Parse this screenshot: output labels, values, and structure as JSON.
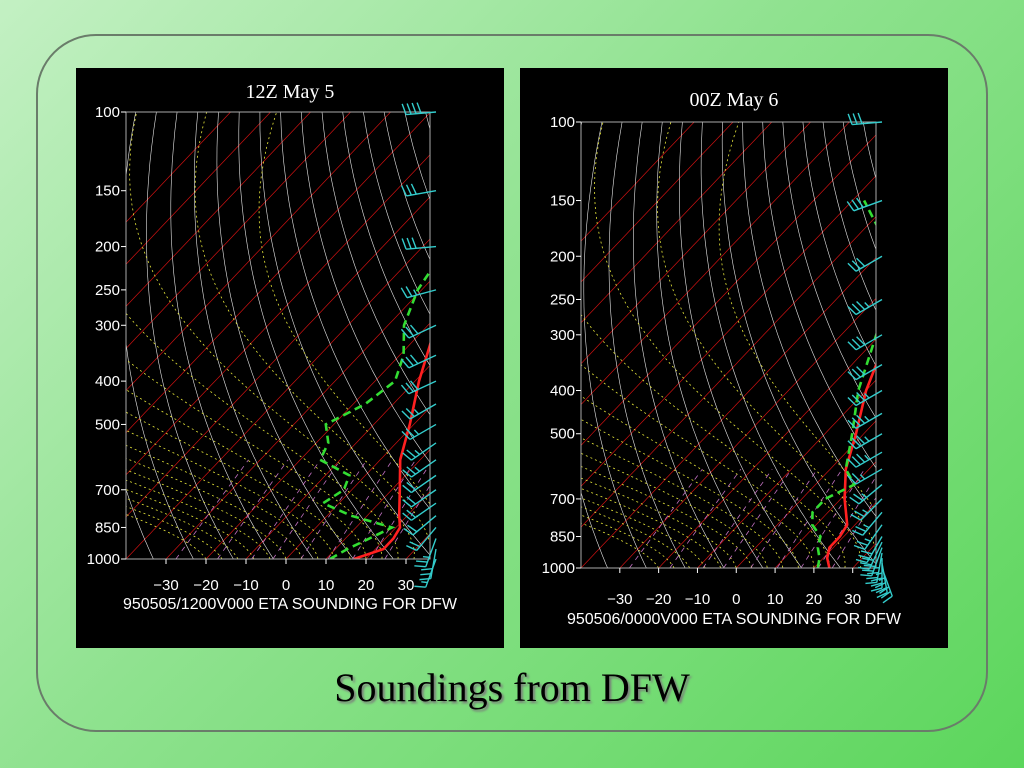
{
  "slide_title": "Soundings from DFW",
  "colors": {
    "background_light": "#c3f0c3",
    "background_dark": "#5cd65c",
    "panel": "#000000",
    "temperature": "#ff2020",
    "dewpoint": "#33dd33",
    "isotherm": "#cc1111",
    "dry_adiabat": "#e8e8e8",
    "moist_adiabat": "#e6e63a",
    "mixing_ratio": "#c070c0",
    "wind_barb": "#33cccc",
    "axis_text": "#ffffff"
  },
  "chart_data": [
    {
      "type": "skew-t",
      "title": "12Z May 5",
      "footer": "950505/1200V000 ETA SOUNDING FOR DFW",
      "pressure_ticks": [
        100,
        150,
        200,
        250,
        300,
        400,
        500,
        700,
        850,
        1000
      ],
      "temperature_ticks": [
        -30,
        -20,
        -10,
        0,
        10,
        20,
        30
      ],
      "xlim": [
        -40,
        36
      ],
      "ylim": [
        1000,
        100
      ],
      "temperature": [
        [
          1000,
          17
        ],
        [
          950,
          22
        ],
        [
          900,
          22
        ],
        [
          850,
          21
        ],
        [
          800,
          18
        ],
        [
          700,
          12
        ],
        [
          600,
          5
        ],
        [
          500,
          -1
        ],
        [
          400,
          -9
        ],
        [
          300,
          -18
        ],
        [
          250,
          -24
        ],
        [
          200,
          -33
        ],
        [
          150,
          -47
        ],
        [
          125,
          -52
        ],
        [
          100,
          -58
        ]
      ],
      "dewpoint": [
        [
          1000,
          11
        ],
        [
          950,
          13
        ],
        [
          900,
          16
        ],
        [
          850,
          19
        ],
        [
          800,
          6
        ],
        [
          750,
          -4
        ],
        [
          700,
          -2
        ],
        [
          650,
          -4
        ],
        [
          600,
          -15
        ],
        [
          550,
          -17
        ],
        [
          500,
          -22
        ],
        [
          450,
          -17
        ],
        [
          400,
          -15
        ],
        [
          350,
          -19
        ],
        [
          300,
          -26
        ],
        [
          250,
          -31
        ],
        [
          200,
          -34
        ],
        [
          190,
          -35
        ]
      ],
      "wind_barbs": [
        {
          "p": 1000,
          "dir": 200,
          "spd": 15
        },
        {
          "p": 950,
          "dir": 190,
          "spd": 30
        },
        {
          "p": 900,
          "dir": 200,
          "spd": 25
        },
        {
          "p": 850,
          "dir": 220,
          "spd": 20
        },
        {
          "p": 800,
          "dir": 230,
          "spd": 20
        },
        {
          "p": 750,
          "dir": 235,
          "spd": 20
        },
        {
          "p": 700,
          "dir": 235,
          "spd": 20
        },
        {
          "p": 650,
          "dir": 235,
          "spd": 20
        },
        {
          "p": 600,
          "dir": 235,
          "spd": 25
        },
        {
          "p": 550,
          "dir": 235,
          "spd": 25
        },
        {
          "p": 500,
          "dir": 240,
          "spd": 25
        },
        {
          "p": 450,
          "dir": 240,
          "spd": 25
        },
        {
          "p": 400,
          "dir": 245,
          "spd": 30
        },
        {
          "p": 350,
          "dir": 245,
          "spd": 30
        },
        {
          "p": 300,
          "dir": 245,
          "spd": 30
        },
        {
          "p": 250,
          "dir": 255,
          "spd": 25
        },
        {
          "p": 200,
          "dir": 265,
          "spd": 30
        },
        {
          "p": 150,
          "dir": 260,
          "spd": 30
        },
        {
          "p": 100,
          "dir": 265,
          "spd": 40
        }
      ]
    },
    {
      "type": "skew-t",
      "title": "00Z May 6",
      "footer": "950506/0000V000 ETA SOUNDING FOR DFW",
      "pressure_ticks": [
        100,
        150,
        200,
        250,
        300,
        400,
        500,
        700,
        850,
        1000
      ],
      "temperature_ticks": [
        -30,
        -20,
        -10,
        0,
        10,
        20,
        30
      ],
      "xlim": [
        -40,
        36
      ],
      "ylim": [
        1000,
        100
      ],
      "temperature": [
        [
          1000,
          24
        ],
        [
          950,
          21
        ],
        [
          900,
          19
        ],
        [
          850,
          19
        ],
        [
          800,
          18
        ],
        [
          700,
          11
        ],
        [
          600,
          4
        ],
        [
          500,
          -2
        ],
        [
          400,
          -10
        ],
        [
          300,
          -18
        ],
        [
          250,
          -24
        ],
        [
          200,
          -32
        ],
        [
          150,
          -45
        ],
        [
          125,
          -48
        ],
        [
          100,
          -57
        ]
      ],
      "dewpoint": [
        [
          1000,
          21
        ],
        [
          950,
          19
        ],
        [
          900,
          16
        ],
        [
          850,
          14
        ],
        [
          800,
          9
        ],
        [
          750,
          6
        ],
        [
          700,
          6
        ],
        [
          650,
          10
        ],
        [
          600,
          4
        ],
        [
          500,
          -3
        ],
        [
          400,
          -12
        ],
        [
          300,
          -21
        ],
        [
          250,
          -27
        ],
        [
          200,
          -36
        ],
        [
          150,
          -57
        ]
      ],
      "wind_barbs": [
        {
          "p": 1000,
          "dir": 160,
          "spd": 30
        },
        {
          "p": 975,
          "dir": 170,
          "spd": 35
        },
        {
          "p": 950,
          "dir": 180,
          "spd": 35
        },
        {
          "p": 925,
          "dir": 190,
          "spd": 35
        },
        {
          "p": 900,
          "dir": 200,
          "spd": 30
        },
        {
          "p": 875,
          "dir": 205,
          "spd": 30
        },
        {
          "p": 850,
          "dir": 210,
          "spd": 30
        },
        {
          "p": 800,
          "dir": 215,
          "spd": 25
        },
        {
          "p": 750,
          "dir": 220,
          "spd": 25
        },
        {
          "p": 700,
          "dir": 225,
          "spd": 25
        },
        {
          "p": 650,
          "dir": 230,
          "spd": 25
        },
        {
          "p": 600,
          "dir": 240,
          "spd": 25
        },
        {
          "p": 550,
          "dir": 240,
          "spd": 35
        },
        {
          "p": 500,
          "dir": 240,
          "spd": 35
        },
        {
          "p": 450,
          "dir": 240,
          "spd": 35
        },
        {
          "p": 400,
          "dir": 240,
          "spd": 35
        },
        {
          "p": 350,
          "dir": 240,
          "spd": 30
        },
        {
          "p": 300,
          "dir": 240,
          "spd": 30
        },
        {
          "p": 250,
          "dir": 240,
          "spd": 35
        },
        {
          "p": 200,
          "dir": 240,
          "spd": 30
        },
        {
          "p": 150,
          "dir": 250,
          "spd": 30
        },
        {
          "p": 100,
          "dir": 265,
          "spd": 30
        }
      ]
    }
  ]
}
